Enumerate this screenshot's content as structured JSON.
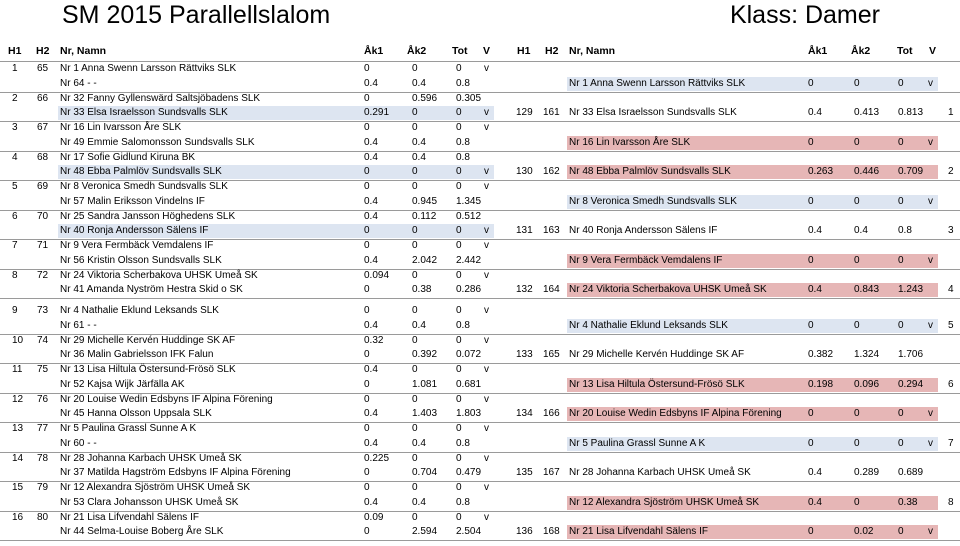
{
  "title": "SM 2015 Parallellslalom",
  "klass": "Klass: Damer",
  "headers": {
    "h1": "H1",
    "h2": "H2",
    "name": "Nr, Namn",
    "ak1": "Åk1",
    "ak2": "Åk2",
    "tot": "Tot",
    "v": "V"
  },
  "heats": [
    {
      "h1": "1",
      "h2": "65",
      "rows": [
        {
          "name": "Nr 1 Anna Swenn Larsson Rättviks SLK",
          "a": "0",
          "b": "0",
          "t": "0",
          "v": "v",
          "hl": ""
        },
        {
          "name": "Nr 64 - -",
          "a": "0.4",
          "b": "0.4",
          "t": "0.8",
          "v": "",
          "hl": ""
        }
      ]
    },
    {
      "h1": "2",
      "h2": "66",
      "rows": [
        {
          "name": "Nr 32 Fanny Gyllenswärd Saltsjöbadens SLK",
          "a": "0",
          "b": "0.596",
          "t": "0.305",
          "v": "",
          "hl": ""
        },
        {
          "name": "Nr 33 Elsa Israelsson Sundsvalls SLK",
          "a": "0.291",
          "b": "0",
          "t": "0",
          "v": "v",
          "hl": "blue"
        }
      ]
    },
    {
      "h1": "3",
      "h2": "67",
      "rows": [
        {
          "name": "Nr 16 Lin Ivarsson Åre SLK",
          "a": "0",
          "b": "0",
          "t": "0",
          "v": "v",
          "hl": ""
        },
        {
          "name": "Nr 49 Emmie Salomonsson Sundsvalls SLK",
          "a": "0.4",
          "b": "0.4",
          "t": "0.8",
          "v": "",
          "hl": ""
        }
      ]
    },
    {
      "h1": "4",
      "h2": "68",
      "rows": [
        {
          "name": "Nr 17 Sofie Gidlund Kiruna BK",
          "a": "0.4",
          "b": "0.4",
          "t": "0.8",
          "v": "",
          "hl": ""
        },
        {
          "name": "Nr 48 Ebba Palmlöv Sundsvalls SLK",
          "a": "0",
          "b": "0",
          "t": "0",
          "v": "v",
          "hl": "blue"
        }
      ]
    },
    {
      "h1": "5",
      "h2": "69",
      "rows": [
        {
          "name": "Nr 8 Veronica Smedh Sundsvalls SLK",
          "a": "0",
          "b": "0",
          "t": "0",
          "v": "v",
          "hl": ""
        },
        {
          "name": "Nr 57 Malin Eriksson Vindelns IF",
          "a": "0.4",
          "b": "0.945",
          "t": "1.345",
          "v": "",
          "hl": ""
        }
      ]
    },
    {
      "h1": "6",
      "h2": "70",
      "rows": [
        {
          "name": "Nr 25 Sandra Jansson Höghedens SLK",
          "a": "0.4",
          "b": "0.112",
          "t": "0.512",
          "v": "",
          "hl": ""
        },
        {
          "name": "Nr 40 Ronja Andersson Sälens IF",
          "a": "0",
          "b": "0",
          "t": "0",
          "v": "v",
          "hl": "blue"
        }
      ]
    },
    {
      "h1": "7",
      "h2": "71",
      "rows": [
        {
          "name": "Nr 9 Vera Fermbäck Vemdalens IF",
          "a": "0",
          "b": "0",
          "t": "0",
          "v": "v",
          "hl": ""
        },
        {
          "name": "Nr 56 Kristin Olsson Sundsvalls SLK",
          "a": "0.4",
          "b": "2.042",
          "t": "2.442",
          "v": "",
          "hl": ""
        }
      ]
    },
    {
      "h1": "8",
      "h2": "72",
      "rows": [
        {
          "name": "Nr 24 Viktoria Scherbakova UHSK Umeå SK",
          "a": "0.094",
          "b": "0",
          "t": "0",
          "v": "v",
          "hl": ""
        },
        {
          "name": "Nr 41 Amanda Nyström Hestra Skid o SK",
          "a": "0",
          "b": "0.38",
          "t": "0.286",
          "v": "",
          "hl": ""
        }
      ]
    },
    {
      "h1": "9",
      "h2": "73",
      "rows": [
        {
          "name": "Nr 4 Nathalie Eklund Leksands SLK",
          "a": "0",
          "b": "0",
          "t": "0",
          "v": "v",
          "hl": ""
        },
        {
          "name": "Nr 61 - -",
          "a": "0.4",
          "b": "0.4",
          "t": "0.8",
          "v": "",
          "hl": ""
        }
      ]
    },
    {
      "h1": "10",
      "h2": "74",
      "rows": [
        {
          "name": "Nr 29 Michelle Kervén Huddinge SK AF",
          "a": "0.32",
          "b": "0",
          "t": "0",
          "v": "v",
          "hl": ""
        },
        {
          "name": "Nr 36 Malin Gabrielsson IFK Falun",
          "a": "0",
          "b": "0.392",
          "t": "0.072",
          "v": "",
          "hl": ""
        }
      ]
    },
    {
      "h1": "11",
      "h2": "75",
      "rows": [
        {
          "name": "Nr 13 Lisa Hiltula Östersund-Frösö SLK",
          "a": "0.4",
          "b": "0",
          "t": "0",
          "v": "v",
          "hl": ""
        },
        {
          "name": "Nr 52 Kajsa Wijk Järfälla AK",
          "a": "0",
          "b": "1.081",
          "t": "0.681",
          "v": "",
          "hl": ""
        }
      ]
    },
    {
      "h1": "12",
      "h2": "76",
      "rows": [
        {
          "name": "Nr 20 Louise Wedin Edsbyns IF Alpina Förening",
          "a": "0",
          "b": "0",
          "t": "0",
          "v": "v",
          "hl": ""
        },
        {
          "name": "Nr 45 Hanna Olsson Uppsala SLK",
          "a": "0.4",
          "b": "1.403",
          "t": "1.803",
          "v": "",
          "hl": ""
        }
      ]
    },
    {
      "h1": "13",
      "h2": "77",
      "rows": [
        {
          "name": "Nr 5 Paulina Grassl Sunne A K",
          "a": "0",
          "b": "0",
          "t": "0",
          "v": "v",
          "hl": ""
        },
        {
          "name": "Nr 60 - -",
          "a": "0.4",
          "b": "0.4",
          "t": "0.8",
          "v": "",
          "hl": ""
        }
      ]
    },
    {
      "h1": "14",
      "h2": "78",
      "rows": [
        {
          "name": "Nr 28 Johanna Karbach UHSK Umeå SK",
          "a": "0.225",
          "b": "0",
          "t": "0",
          "v": "v",
          "hl": ""
        },
        {
          "name": "Nr 37 Matilda Hagström Edsbyns IF Alpina Förening",
          "a": "0",
          "b": "0.704",
          "t": "0.479",
          "v": "",
          "hl": ""
        }
      ]
    },
    {
      "h1": "15",
      "h2": "79",
      "rows": [
        {
          "name": "Nr 12 Alexandra Sjöström UHSK Umeå SK",
          "a": "0",
          "b": "0",
          "t": "0",
          "v": "v",
          "hl": ""
        },
        {
          "name": "Nr 53 Clara Johansson UHSK Umeå SK",
          "a": "0.4",
          "b": "0.4",
          "t": "0.8",
          "v": "",
          "hl": ""
        }
      ]
    },
    {
      "h1": "16",
      "h2": "80",
      "rows": [
        {
          "name": "Nr 21 Lisa Lifvendahl Sälens IF",
          "a": "0.09",
          "b": "0",
          "t": "0",
          "v": "v",
          "hl": ""
        },
        {
          "name": "Nr 44 Selma-Louise Boberg Åre SLK",
          "a": "0",
          "b": "2.594",
          "t": "2.504",
          "v": "",
          "hl": ""
        }
      ]
    }
  ],
  "right": [
    {
      "h1": "",
      "h2": "",
      "place": "",
      "rows": [
        {
          "name": "Nr 1 Anna Swenn Larsson Rättviks SLK",
          "a": "0",
          "b": "0",
          "t": "0",
          "v": "v",
          "hl": "blue"
        }
      ]
    },
    {
      "h1": "129",
      "h2": "161",
      "place": "1",
      "rows": [
        {
          "name": "Nr 33 Elsa Israelsson Sundsvalls SLK",
          "a": "0.4",
          "b": "0.413",
          "t": "0.813",
          "v": "",
          "hl": ""
        }
      ]
    },
    {
      "h1": "",
      "h2": "",
      "place": "",
      "rows": [
        {
          "name": "Nr 16 Lin Ivarsson Åre SLK",
          "a": "0",
          "b": "0",
          "t": "0",
          "v": "v",
          "hl": "red"
        }
      ]
    },
    {
      "h1": "130",
      "h2": "162",
      "place": "2",
      "rows": [
        {
          "name": "Nr 48 Ebba Palmlöv Sundsvalls SLK",
          "a": "0.263",
          "b": "0.446",
          "t": "0.709",
          "v": "",
          "hl": "red"
        }
      ]
    },
    {
      "h1": "",
      "h2": "",
      "place": "",
      "rows": [
        {
          "name": "Nr 8 Veronica Smedh Sundsvalls SLK",
          "a": "0",
          "b": "0",
          "t": "0",
          "v": "v",
          "hl": "blue"
        }
      ]
    },
    {
      "h1": "131",
      "h2": "163",
      "place": "3",
      "rows": [
        {
          "name": "Nr 40 Ronja Andersson Sälens IF",
          "a": "0.4",
          "b": "0.4",
          "t": "0.8",
          "v": "",
          "hl": ""
        }
      ]
    },
    {
      "h1": "",
      "h2": "",
      "place": "",
      "rows": [
        {
          "name": "Nr 9 Vera Fermbäck Vemdalens IF",
          "a": "0",
          "b": "0",
          "t": "0",
          "v": "v",
          "hl": "red"
        }
      ]
    },
    {
      "h1": "132",
      "h2": "164",
      "place": "4",
      "rows": [
        {
          "name": "Nr 24 Viktoria Scherbakova UHSK Umeå SK",
          "a": "0.4",
          "b": "0.843",
          "t": "1.243",
          "v": "",
          "hl": "red"
        }
      ]
    },
    {
      "h1": "",
      "h2": "",
      "place": "5",
      "rows": [
        {
          "name": "Nr 4 Nathalie Eklund Leksands SLK",
          "a": "0",
          "b": "0",
          "t": "0",
          "v": "v",
          "hl": "blue"
        }
      ]
    },
    {
      "h1": "133",
      "h2": "165",
      "place": "",
      "rows": [
        {
          "name": "Nr 29 Michelle Kervén Huddinge SK AF",
          "a": "0.382",
          "b": "1.324",
          "t": "1.706",
          "v": "",
          "hl": ""
        }
      ]
    },
    {
      "h1": "",
      "h2": "",
      "place": "6",
      "rows": [
        {
          "name": "Nr 13 Lisa Hiltula Östersund-Frösö SLK",
          "a": "0.198",
          "b": "0.096",
          "t": "0.294",
          "v": "",
          "hl": "red"
        }
      ]
    },
    {
      "h1": "134",
      "h2": "166",
      "place": "",
      "rows": [
        {
          "name": "Nr 20 Louise Wedin Edsbyns IF Alpina Förening",
          "a": "0",
          "b": "0",
          "t": "0",
          "v": "v",
          "hl": "red"
        }
      ]
    },
    {
      "h1": "",
      "h2": "",
      "place": "7",
      "rows": [
        {
          "name": "Nr 5 Paulina Grassl Sunne A K",
          "a": "0",
          "b": "0",
          "t": "0",
          "v": "v",
          "hl": "blue"
        }
      ]
    },
    {
      "h1": "135",
      "h2": "167",
      "place": "",
      "rows": [
        {
          "name": "Nr 28 Johanna Karbach UHSK Umeå SK",
          "a": "0.4",
          "b": "0.289",
          "t": "0.689",
          "v": "",
          "hl": ""
        }
      ]
    },
    {
      "h1": "",
      "h2": "",
      "place": "8",
      "rows": [
        {
          "name": "Nr 12 Alexandra Sjöström UHSK Umeå SK",
          "a": "0.4",
          "b": "0",
          "t": "0.38",
          "v": "",
          "hl": "red"
        }
      ]
    },
    {
      "h1": "136",
      "h2": "168",
      "place": "",
      "rows": [
        {
          "name": "Nr 21 Lisa Lifvendahl Sälens IF",
          "a": "0",
          "b": "0.02",
          "t": "0",
          "v": "v",
          "hl": "red"
        }
      ]
    }
  ]
}
